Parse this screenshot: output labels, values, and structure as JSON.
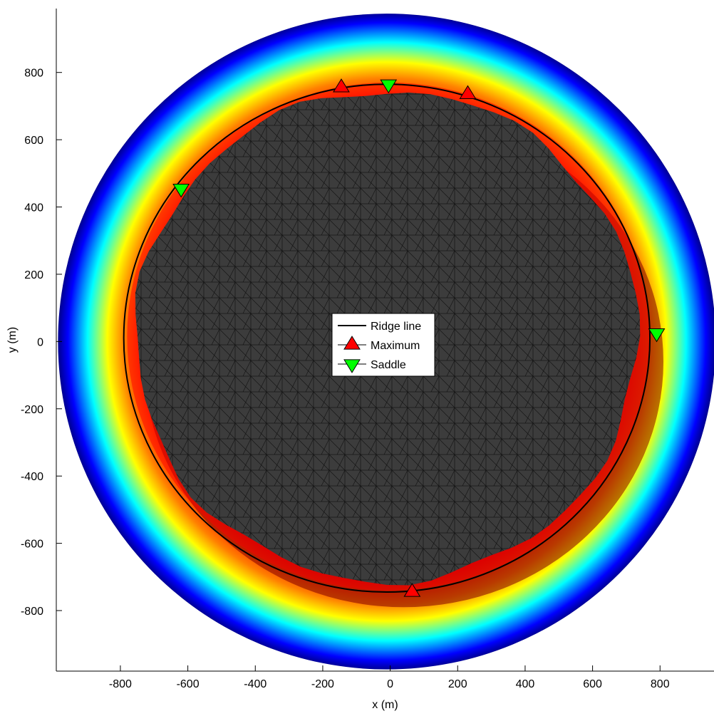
{
  "chart_data": {
    "type": "scatter",
    "xlabel": "x (m)",
    "ylabel": "y (m)",
    "xlim": [
      -990,
      960
    ],
    "ylim": [
      -980,
      990
    ],
    "xticks": [
      -800,
      -600,
      -400,
      -200,
      0,
      200,
      400,
      600,
      800
    ],
    "yticks": [
      -800,
      -600,
      -400,
      -200,
      0,
      200,
      400,
      600,
      800
    ],
    "grid": false,
    "legend_position": "center",
    "colormap": [
      "#00008f",
      "#0000ff",
      "#0080ff",
      "#00ffff",
      "#80ff80",
      "#ffff00",
      "#ff8000",
      "#ff0000",
      "#800000"
    ],
    "background_disk": {
      "center": [
        -10,
        0
      ],
      "radius": 975
    },
    "interior_color": "#3c3c3c",
    "series": [
      {
        "name": "Ridge line",
        "kind": "line",
        "color": "#000000",
        "center": [
          -10,
          10
        ],
        "radii": [
          780,
          755
        ]
      },
      {
        "name": "Maximum",
        "kind": "marker",
        "marker": "triangle-up",
        "color": "#ff0000",
        "points": [
          [
            -145,
            755
          ],
          [
            230,
            735
          ],
          [
            65,
            -745
          ]
        ]
      },
      {
        "name": "Saddle",
        "kind": "marker",
        "marker": "triangle-down",
        "color": "#00ff00",
        "points": [
          [
            -5,
            765
          ],
          [
            -620,
            455
          ],
          [
            790,
            25
          ]
        ]
      }
    ]
  }
}
